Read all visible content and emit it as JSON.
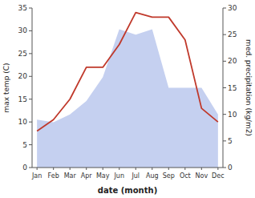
{
  "chart_data": {
    "type": "line",
    "xlabel": "date (month)",
    "ylabel": "max temp (C)",
    "y2label": "med. precipitation (kg/m2)",
    "categories": [
      "Jan",
      "Feb",
      "Mar",
      "Apr",
      "May",
      "Jun",
      "Jul",
      "Aug",
      "Sep",
      "Oct",
      "Nov",
      "Dec"
    ],
    "series": [
      {
        "type": "area",
        "axis": "y2",
        "color": "#c5d0f0",
        "values": [
          9,
          8.5,
          10,
          12.5,
          17,
          26,
          25,
          26,
          15,
          15,
          15,
          10
        ]
      },
      {
        "type": "line",
        "color": "#c0392b",
        "values": [
          8,
          10.5,
          15,
          22,
          22,
          27,
          34,
          33,
          33,
          28,
          13,
          10
        ]
      }
    ],
    "ylim": [
      0,
      35
    ],
    "yticks": [
      0,
      5,
      10,
      15,
      20,
      25,
      30,
      35
    ],
    "y2lim": [
      0,
      30
    ],
    "y2ticks": [
      0,
      5,
      10,
      15,
      20,
      25,
      30
    ]
  }
}
